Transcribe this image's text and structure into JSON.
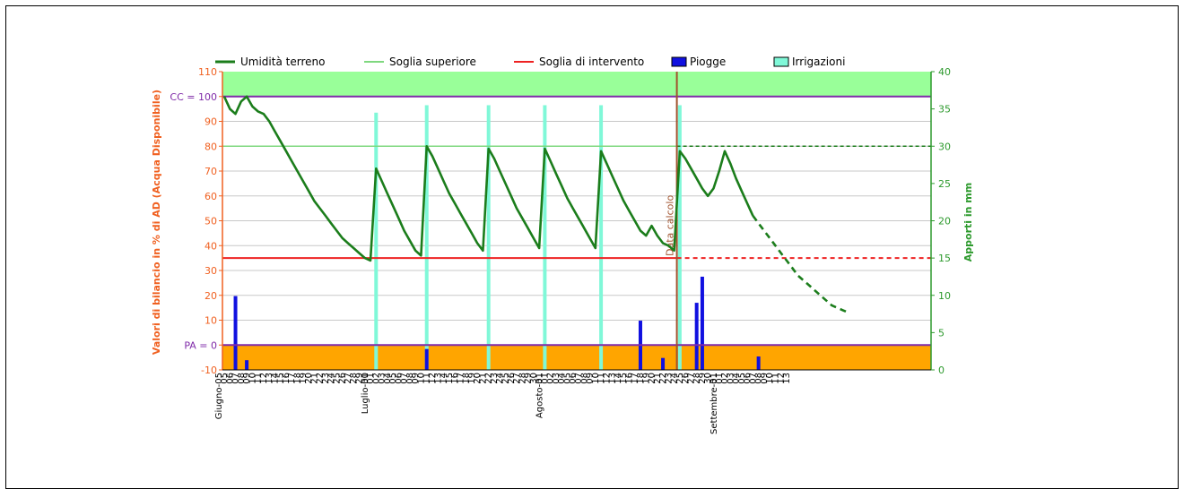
{
  "chart_data": {
    "type": "line",
    "title": "",
    "ylabel_left": "Valori di bilancio in % di AD (Acqua Disponibile)",
    "ylabel_right": "Apporti in mm",
    "ylim_left": [
      -10,
      110
    ],
    "ylim_right": [
      0,
      40
    ],
    "y_ticks_left": [
      "-10",
      "0",
      "10",
      "20",
      "30",
      "40",
      "50",
      "60",
      "70",
      "80",
      "90",
      "100",
      "110"
    ],
    "y_ticks_right": [
      "0",
      "5",
      "10",
      "15",
      "20",
      "25",
      "30",
      "35",
      "40"
    ],
    "ref_labels": {
      "cc": "CC = 100",
      "pa": "PA = 0",
      "data_calcolo": "Data calcolo"
    },
    "colors": {
      "soil": "#1b7d1b",
      "upper": "#7fd87f",
      "intervention": "#ee2222",
      "rain": "#1010e0",
      "irrigation": "#80f8d8",
      "cc_line": "#7f2aa8",
      "top_band": "#99ff99",
      "bottom_band": "#ffa500",
      "left_axis": "#f06020",
      "right_axis": "#2e9a2e",
      "calc_line": "#a0522d"
    },
    "legend": [
      {
        "label": "Umidità terreno",
        "kind": "line",
        "color": "#1b7d1b"
      },
      {
        "label": "Soglia superiore",
        "kind": "line",
        "color": "#7fd87f"
      },
      {
        "label": "Soglia di intervento",
        "kind": "line",
        "color": "#ee2222"
      },
      {
        "label": "Piogge",
        "kind": "box",
        "color": "#1010e0"
      },
      {
        "label": "Irrigazioni",
        "kind": "box",
        "color": "#80f8d8"
      }
    ],
    "x_day_labels": [
      "05",
      "06",
      "07",
      "08",
      "09",
      "10",
      "11",
      "12",
      "13",
      "14",
      "15",
      "16",
      "17",
      "18",
      "19",
      "20",
      "21",
      "22",
      "23",
      "24",
      "25",
      "26",
      "27",
      "28",
      "29",
      "30",
      "01",
      "02",
      "03",
      "04",
      "05",
      "06",
      "07",
      "08",
      "09",
      "10",
      "11",
      "12",
      "13",
      "14",
      "15",
      "16",
      "17",
      "18",
      "19",
      "20",
      "21",
      "22",
      "23",
      "24",
      "25",
      "26",
      "27",
      "28",
      "29",
      "30",
      "31",
      "01",
      "02",
      "03",
      "04",
      "05",
      "06",
      "07",
      "08",
      "09",
      "10",
      "11",
      "12",
      "13",
      "14",
      "15",
      "16",
      "17",
      "18",
      "19",
      "20",
      "21",
      "22",
      "23",
      "24",
      "25",
      "26",
      "27",
      "28",
      "29",
      "30",
      "31",
      "01",
      "02",
      "03",
      "04",
      "05",
      "06",
      "07",
      "08",
      "09",
      "10",
      "11",
      "12",
      "13"
    ],
    "month_labels": [
      {
        "label": "Giugno-05",
        "day_index": 0
      },
      {
        "label": "Luglio-01",
        "day_index": 26
      },
      {
        "label": "Agosto-01",
        "day_index": 57
      },
      {
        "label": "Settembre-01",
        "day_index": 88
      }
    ],
    "calc_day_index": 80,
    "thresholds": {
      "upper": 80,
      "intervention": 35,
      "cc": 100,
      "pa": 0
    },
    "soil_moisture": [
      [
        0,
        100
      ],
      [
        1,
        95
      ],
      [
        2,
        93
      ],
      [
        3,
        98
      ],
      [
        4,
        100
      ],
      [
        5,
        96
      ],
      [
        6,
        94
      ],
      [
        7,
        93
      ],
      [
        8,
        90
      ],
      [
        9,
        86
      ],
      [
        10,
        82
      ],
      [
        11,
        78
      ],
      [
        12,
        74
      ],
      [
        13,
        70
      ],
      [
        14,
        66
      ],
      [
        15,
        62
      ],
      [
        16,
        58
      ],
      [
        17,
        55
      ],
      [
        18,
        52
      ],
      [
        19,
        49
      ],
      [
        20,
        46
      ],
      [
        21,
        43
      ],
      [
        22,
        41
      ],
      [
        23,
        39
      ],
      [
        24,
        37
      ],
      [
        25,
        35
      ],
      [
        26,
        34
      ],
      [
        27,
        71
      ],
      [
        28,
        66
      ],
      [
        29,
        61
      ],
      [
        30,
        56
      ],
      [
        31,
        51
      ],
      [
        32,
        46
      ],
      [
        33,
        42
      ],
      [
        34,
        38
      ],
      [
        35,
        36
      ],
      [
        36,
        80
      ],
      [
        37,
        76
      ],
      [
        38,
        71
      ],
      [
        39,
        66
      ],
      [
        40,
        61
      ],
      [
        41,
        57
      ],
      [
        42,
        53
      ],
      [
        43,
        49
      ],
      [
        44,
        45
      ],
      [
        45,
        41
      ],
      [
        46,
        38
      ],
      [
        47,
        79
      ],
      [
        48,
        75
      ],
      [
        49,
        70
      ],
      [
        50,
        65
      ],
      [
        51,
        60
      ],
      [
        52,
        55
      ],
      [
        53,
        51
      ],
      [
        54,
        47
      ],
      [
        55,
        43
      ],
      [
        56,
        39
      ],
      [
        57,
        79
      ],
      [
        58,
        74
      ],
      [
        59,
        69
      ],
      [
        60,
        64
      ],
      [
        61,
        59
      ],
      [
        62,
        55
      ],
      [
        63,
        51
      ],
      [
        64,
        47
      ],
      [
        65,
        43
      ],
      [
        66,
        39
      ],
      [
        67,
        78
      ],
      [
        68,
        73
      ],
      [
        69,
        68
      ],
      [
        70,
        63
      ],
      [
        71,
        58
      ],
      [
        72,
        54
      ],
      [
        73,
        50
      ],
      [
        74,
        46
      ],
      [
        75,
        44
      ],
      [
        76,
        48
      ],
      [
        77,
        44
      ],
      [
        78,
        41
      ],
      [
        79,
        40
      ],
      [
        80,
        38
      ],
      [
        81,
        78
      ],
      [
        82,
        75
      ],
      [
        83,
        71
      ],
      [
        84,
        67
      ],
      [
        85,
        63
      ],
      [
        86,
        60
      ],
      [
        87,
        63
      ],
      [
        88,
        70
      ],
      [
        89,
        78
      ],
      [
        90,
        73
      ],
      [
        91,
        67
      ],
      [
        92,
        62
      ],
      [
        93,
        57
      ],
      [
        94,
        52
      ]
    ],
    "soil_forecast": [
      [
        94,
        52
      ],
      [
        95,
        49
      ],
      [
        96,
        46
      ],
      [
        97,
        43
      ],
      [
        98,
        40
      ],
      [
        99,
        37
      ],
      [
        100,
        34
      ],
      [
        101,
        31
      ],
      [
        102,
        28
      ],
      [
        103,
        26
      ],
      [
        104,
        24
      ],
      [
        105,
        22
      ],
      [
        106,
        20
      ],
      [
        107,
        18
      ],
      [
        108,
        16
      ],
      [
        109,
        15
      ],
      [
        110,
        14
      ],
      [
        111,
        13
      ]
    ],
    "rain_mm": [
      {
        "day_index": 2,
        "mm": 9.9
      },
      {
        "day_index": 4,
        "mm": 1.3
      },
      {
        "day_index": 36,
        "mm": 2.8
      },
      {
        "day_index": 74,
        "mm": 6.6
      },
      {
        "day_index": 78,
        "mm": 1.6
      },
      {
        "day_index": 84,
        "mm": 9.0
      },
      {
        "day_index": 85,
        "mm": 12.5
      },
      {
        "day_index": 95,
        "mm": 1.8
      }
    ],
    "irrigation_mm": [
      {
        "day_index": 27,
        "mm": 34.5
      },
      {
        "day_index": 36,
        "mm": 35.5
      },
      {
        "day_index": 47,
        "mm": 35.5
      },
      {
        "day_index": 57,
        "mm": 35.5
      },
      {
        "day_index": 67,
        "mm": 35.5
      },
      {
        "day_index": 81,
        "mm": 35.5
      }
    ]
  }
}
